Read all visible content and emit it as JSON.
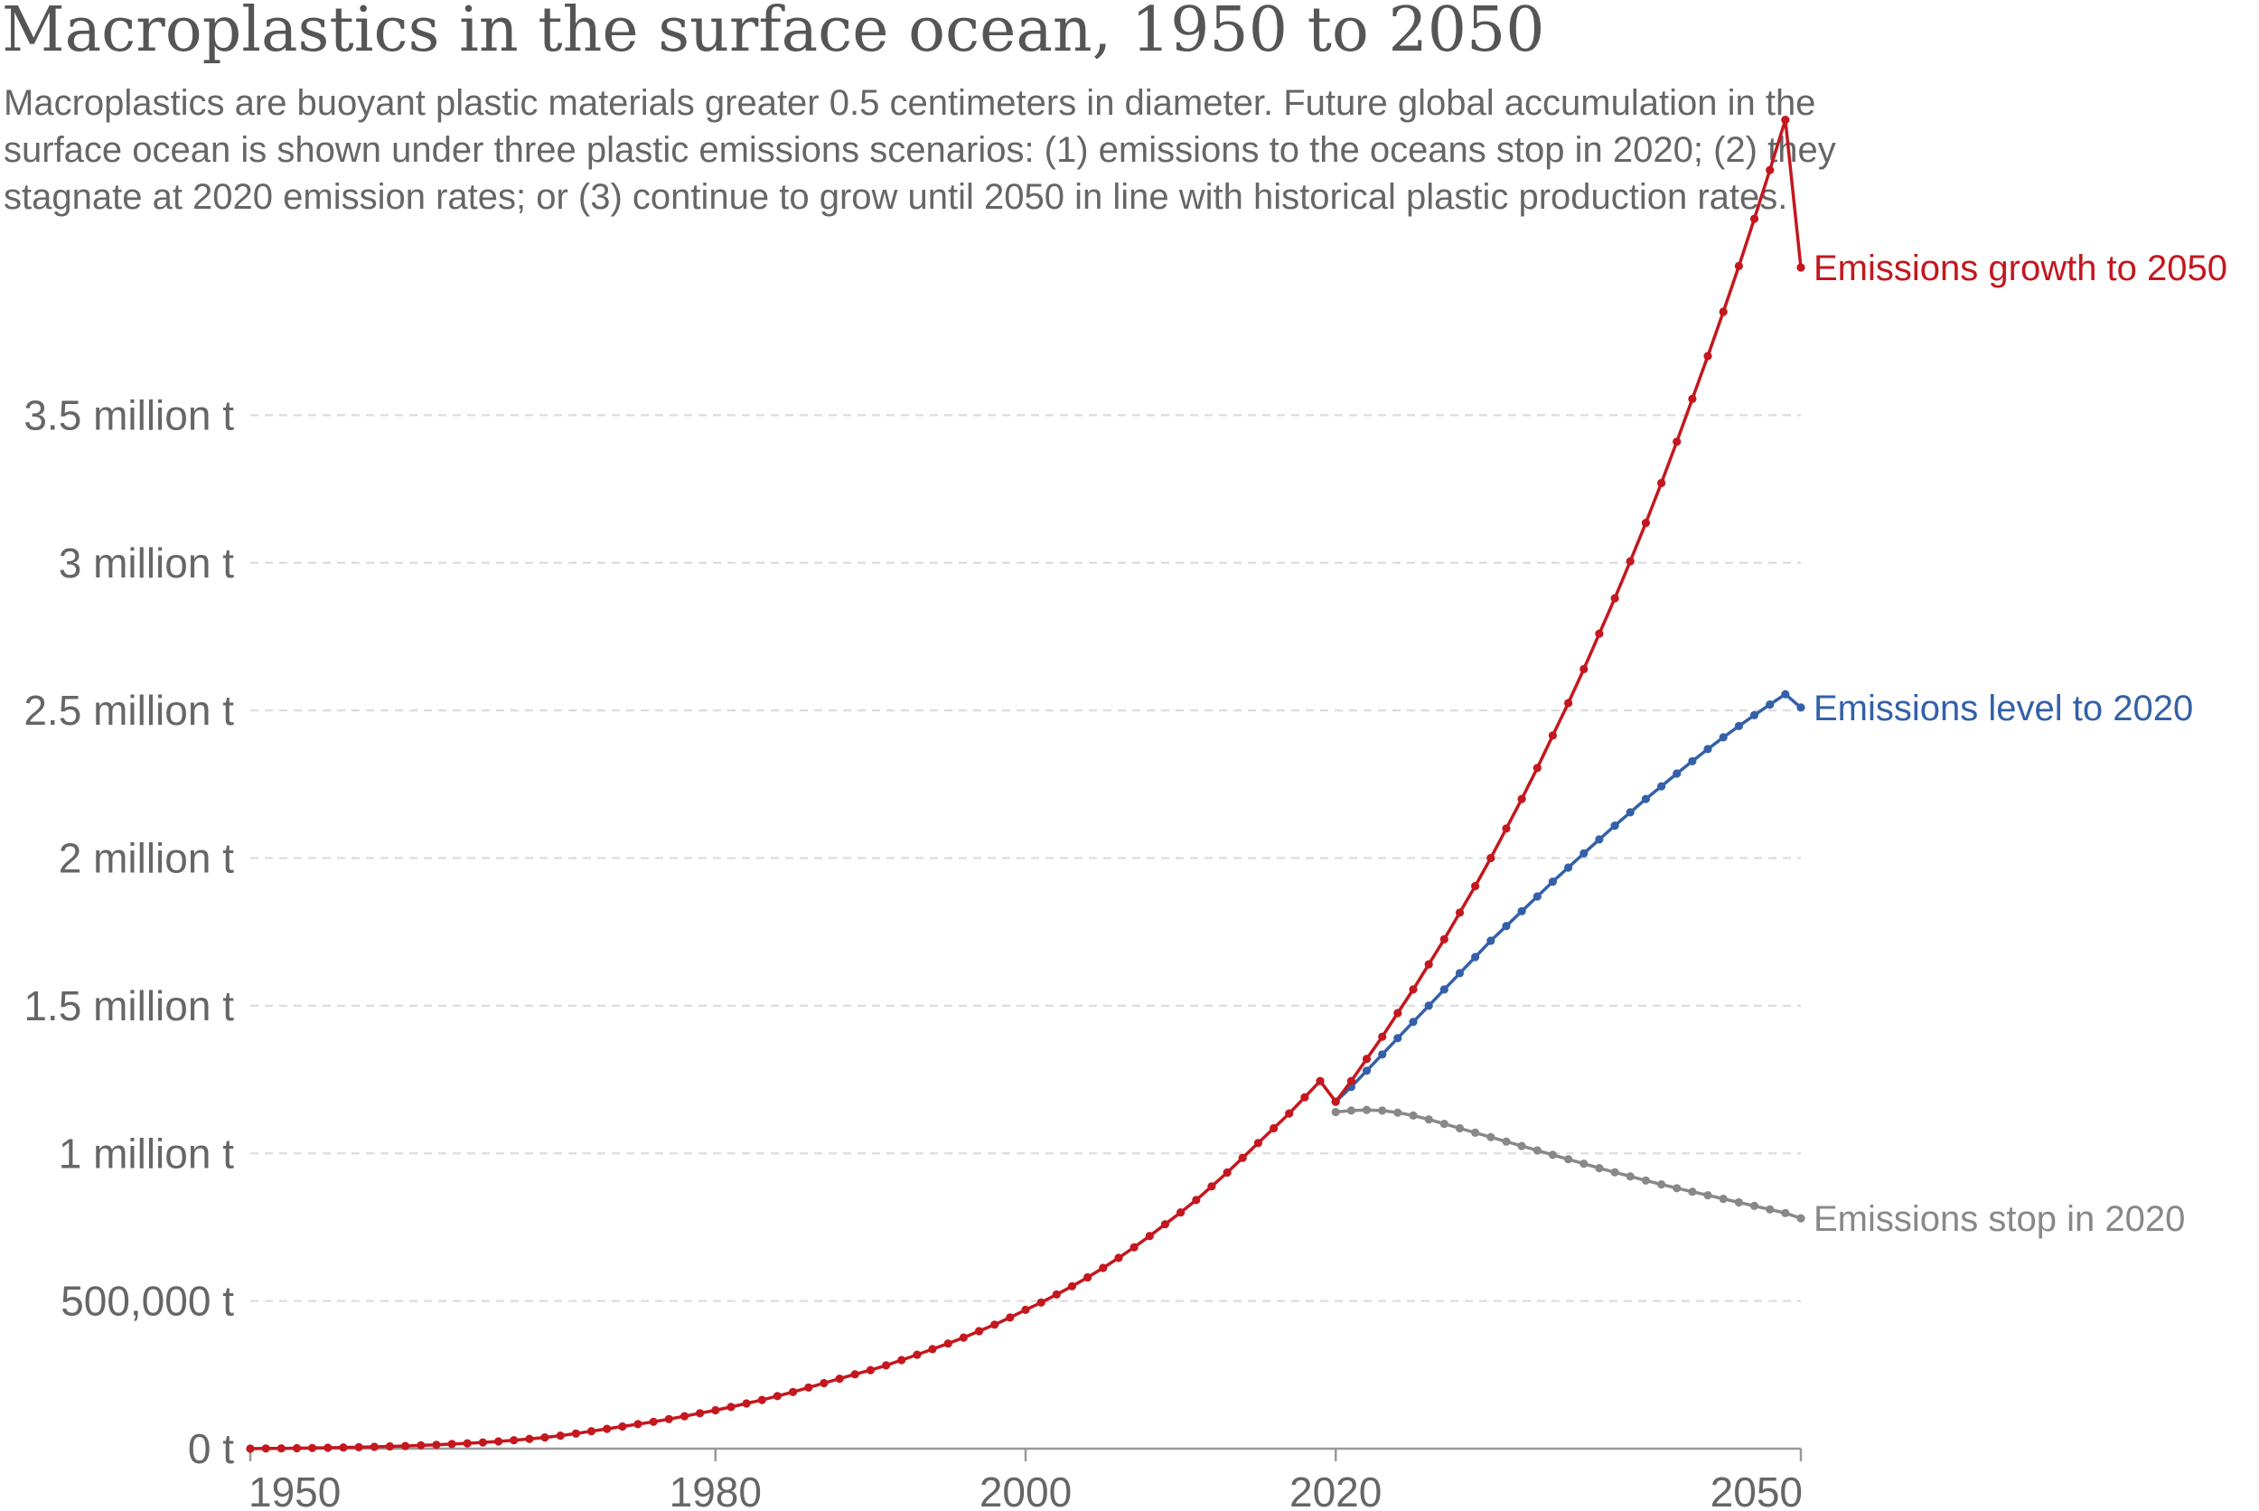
{
  "chart_data": {
    "type": "line",
    "title": "Macroplastics in the surface ocean, 1950 to 2050",
    "subtitle_lines": [
      "Macroplastics are buoyant plastic materials greater 0.5 centimeters in diameter. Future global accumulation in the",
      "surface ocean is shown under three plastic emissions scenarios: (1) emissions to the oceans stop in 2020; (2) they",
      "stagnate at 2020 emission rates; or (3) continue to grow until 2050 in line with historical plastic production rates."
    ],
    "xlim": [
      1950,
      2050
    ],
    "ylim": [
      0,
      4000000
    ],
    "x_ticks": [
      1950,
      1980,
      2000,
      2020,
      2050
    ],
    "x_tick_labels": [
      "1950",
      "1980",
      "2000",
      "2020",
      "2050"
    ],
    "y_ticks": [
      0,
      500000,
      1000000,
      1500000,
      2000000,
      2500000,
      3000000,
      3500000
    ],
    "y_tick_labels": [
      "0 t",
      "500,000 t",
      "1 million t",
      "1.5 million t",
      "2 million t",
      "2.5 million t",
      "3 million t",
      "3.5 million t"
    ],
    "series": [
      {
        "name": "Emissions stop in 2020",
        "color": "#888888",
        "x": [
          2020,
          2021,
          2022,
          2023,
          2024,
          2025,
          2026,
          2027,
          2028,
          2029,
          2030,
          2031,
          2032,
          2033,
          2034,
          2035,
          2036,
          2037,
          2038,
          2039,
          2040,
          2041,
          2042,
          2043,
          2044,
          2045,
          2046,
          2047,
          2048,
          2049,
          2050
        ],
        "values": [
          1140000,
          1145000,
          1147000,
          1145000,
          1138000,
          1128000,
          1115000,
          1100000,
          1085000,
          1070000,
          1055000,
          1040000,
          1025000,
          1010000,
          995000,
          980000,
          965000,
          950000,
          936000,
          922000,
          908000,
          895000,
          882000,
          870000,
          858000,
          846000,
          834000,
          822000,
          810000,
          798000,
          780000
        ]
      },
      {
        "name": "Emissions level to 2020",
        "color": "#3360a9",
        "x": [
          2020,
          2021,
          2022,
          2023,
          2024,
          2025,
          2026,
          2027,
          2028,
          2029,
          2030,
          2031,
          2032,
          2033,
          2034,
          2035,
          2036,
          2037,
          2038,
          2039,
          2040,
          2041,
          2042,
          2043,
          2044,
          2045,
          2046,
          2047,
          2048,
          2049,
          2050
        ],
        "values": [
          1175000,
          1225000,
          1280000,
          1335000,
          1390000,
          1445000,
          1500000,
          1555000,
          1610000,
          1665000,
          1720000,
          1770000,
          1820000,
          1870000,
          1920000,
          1968000,
          2016000,
          2063000,
          2110000,
          2155000,
          2200000,
          2243000,
          2286000,
          2328000,
          2369000,
          2409000,
          2447000,
          2484000,
          2520000,
          2555000,
          2510000
        ]
      },
      {
        "name": "Emissions growth to 2050",
        "color": "#c4171e",
        "x": [
          1950,
          1951,
          1952,
          1953,
          1954,
          1955,
          1956,
          1957,
          1958,
          1959,
          1960,
          1961,
          1962,
          1963,
          1964,
          1965,
          1966,
          1967,
          1968,
          1969,
          1970,
          1971,
          1972,
          1973,
          1974,
          1975,
          1976,
          1977,
          1978,
          1979,
          1980,
          1981,
          1982,
          1983,
          1984,
          1985,
          1986,
          1987,
          1988,
          1989,
          1990,
          1991,
          1992,
          1993,
          1994,
          1995,
          1996,
          1997,
          1998,
          1999,
          2000,
          2001,
          2002,
          2003,
          2004,
          2005,
          2006,
          2007,
          2008,
          2009,
          2010,
          2011,
          2012,
          2013,
          2014,
          2015,
          2016,
          2017,
          2018,
          2019,
          2020,
          2021,
          2022,
          2023,
          2024,
          2025,
          2026,
          2027,
          2028,
          2029,
          2030,
          2031,
          2032,
          2033,
          2034,
          2035,
          2036,
          2037,
          2038,
          2039,
          2040,
          2041,
          2042,
          2043,
          2044,
          2045,
          2046,
          2047,
          2048,
          2049,
          2050
        ],
        "values": [
          0,
          500,
          1000,
          1500,
          2000,
          3000,
          4000,
          5000,
          6000,
          7500,
          9000,
          11000,
          13000,
          15500,
          18000,
          21000,
          24500,
          28500,
          33000,
          38000,
          44000,
          51000,
          59000,
          67000,
          75000,
          83000,
          91000,
          100000,
          110000,
          120000,
          130000,
          141000,
          153000,
          165000,
          178000,
          192000,
          207000,
          222000,
          237000,
          252000,
          266000,
          282000,
          300000,
          318000,
          337000,
          356000,
          376000,
          398000,
          420000,
          444000,
          470000,
          495000,
          522000,
          550000,
          580000,
          612000,
          646000,
          682000,
          720000,
          760000,
          800000,
          842000,
          888000,
          935000,
          985000,
          1035000,
          1085000,
          1135000,
          1190000,
          1245000,
          1175000,
          1245000,
          1320000,
          1395000,
          1475000,
          1555000,
          1640000,
          1725000,
          1815000,
          1905000,
          2000000,
          2100000,
          2200000,
          2305000,
          2415000,
          2525000,
          2640000,
          2760000,
          2880000,
          3005000,
          3135000,
          3270000,
          3410000,
          3555000,
          3700000,
          3850000,
          4005000,
          4165000,
          4330000,
          4500000,
          4000000
        ]
      }
    ]
  }
}
